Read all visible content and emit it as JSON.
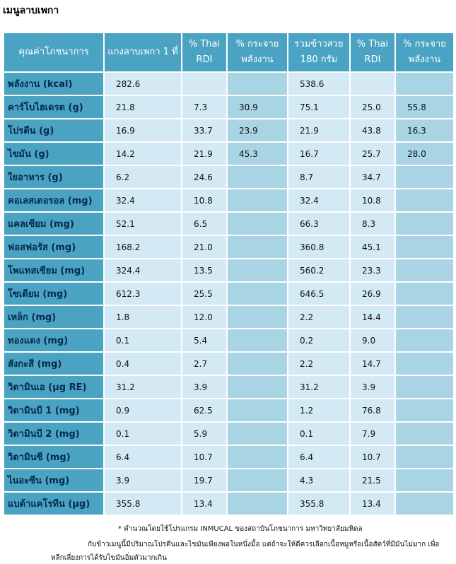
{
  "title": "เมนูลาบเพกา",
  "headers": [
    "คุณค่าโภชนาการ",
    "แกงลาบเพกา 1 ที่",
    "% Thai RDI",
    "% กระจาย พลังงาน",
    "รวมข้าวสวย 180 กรัม",
    "% Thai RDI",
    "% กระจาย พลังงาน"
  ],
  "rows": [
    {
      "label": "พลังงาน (kcal)",
      "v": [
        "282.6",
        "",
        "",
        "538.6",
        "",
        ""
      ]
    },
    {
      "label": "คาร์โบไฮเดรต (g)",
      "v": [
        "21.8",
        "7.3",
        "30.9",
        "75.1",
        "25.0",
        "55.8"
      ]
    },
    {
      "label": "โปรตีน (g)",
      "v": [
        "16.9",
        "33.7",
        "23.9",
        "21.9",
        "43.8",
        "16.3"
      ]
    },
    {
      "label": "ไขมัน (g)",
      "v": [
        "14.2",
        "21.9",
        "45.3",
        "16.7",
        "25.7",
        "28.0"
      ]
    },
    {
      "label": "ใยอาหาร (g)",
      "v": [
        "6.2",
        "24.6",
        "",
        "8.7",
        "34.7",
        ""
      ]
    },
    {
      "label": "คอเลสเตอรอล (mg)",
      "v": [
        "32.4",
        "10.8",
        "",
        "32.4",
        "10.8",
        ""
      ]
    },
    {
      "label": "แคลเซียม (mg)",
      "v": [
        "52.1",
        "6.5",
        "",
        "66.3",
        "8.3",
        ""
      ]
    },
    {
      "label": "ฟอสฟอรัส (mg)",
      "v": [
        "168.2",
        "21.0",
        "",
        "360.8",
        "45.1",
        ""
      ]
    },
    {
      "label": "โพแทสเซียม (mg)",
      "v": [
        "324.4",
        "13.5",
        "",
        "560.2",
        "23.3",
        ""
      ]
    },
    {
      "label": "โซเดียม (mg)",
      "v": [
        "612.3",
        "25.5",
        "",
        "646.5",
        "26.9",
        ""
      ]
    },
    {
      "label": "เหล็ก (mg)",
      "v": [
        "1.8",
        "12.0",
        "",
        "2.2",
        "14.4",
        ""
      ]
    },
    {
      "label": "ทองแดง (mg)",
      "v": [
        "0.1",
        "5.4",
        "",
        "0.2",
        "9.0",
        ""
      ]
    },
    {
      "label": "สังกะสี (mg)",
      "v": [
        "0.4",
        "2.7",
        "",
        "2.2",
        "14.7",
        ""
      ]
    },
    {
      "label": "วิตามินเอ (µg RE)",
      "v": [
        "31.2",
        "3.9",
        "",
        "31.2",
        "3.9",
        ""
      ]
    },
    {
      "label": "วิตามินบี 1 (mg)",
      "v": [
        "0.9",
        "62.5",
        "",
        "1.2",
        "76.8",
        ""
      ]
    },
    {
      "label": "วิตามินบี 2 (mg)",
      "v": [
        "0.1",
        "5.9",
        "",
        "0.1",
        "7.9",
        ""
      ]
    },
    {
      "label": "วิตามินซี (mg)",
      "v": [
        "6.4",
        "10.7",
        "",
        "6.4",
        "10.7",
        ""
      ]
    },
    {
      "label": "ไนอะซีน (mg)",
      "v": [
        "3.9",
        "19.7",
        "",
        "4.3",
        "21.5",
        ""
      ]
    },
    {
      "label": "แบต้าแคโรทีน (µg)",
      "v": [
        "355.8",
        "13.4",
        "",
        "355.8",
        "13.4",
        ""
      ]
    }
  ],
  "footnotes": [
    "* คำนวณโดยใช้โปรแกรม INMUCAL ของสถาบันโภชนาการ มหาวิทยาลัยมหิดล",
    "กับข้าวเมนูนี้มีปริมาณโปรตีนและไขมันเพียงพอในหนึ่งมื้อ แต่ถ้าจะให้ดีควรเลือกเนื้อหมูหรือเนื้อสัตว์ที่มีมันไม่มาก เพื่อ",
    "หลีกเลี่ยงการได้รับไขมันอิ่มตัวมากเกิน"
  ],
  "colors": {
    "header": "#4aa3c3",
    "light_cell": "#d3eaf4",
    "mid_cell": "#a9d4e3"
  }
}
